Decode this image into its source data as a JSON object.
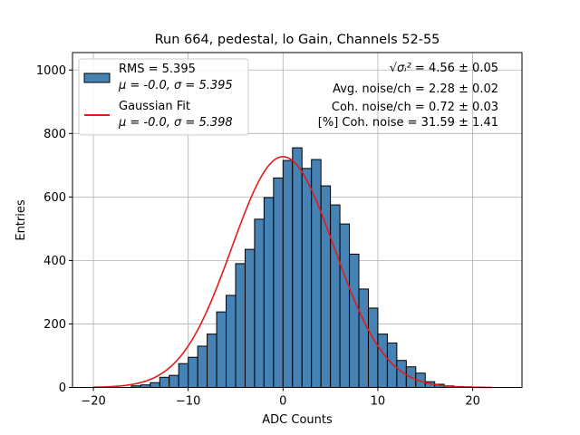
{
  "chart_data": {
    "type": "bar",
    "title": "Run 664, pedestal, lo Gain, Channels 52-55",
    "xlabel": "ADC Counts",
    "ylabel": "Entries",
    "xlim": [
      -22.2,
      25.2
    ],
    "ylim": [
      0,
      1055
    ],
    "grid": true,
    "xticks": [
      -20,
      -10,
      0,
      10,
      20
    ],
    "yticks": [
      0,
      200,
      400,
      600,
      800,
      1000
    ],
    "colors": {
      "bar_fill": "#4682b4",
      "bar_edge": "#000000",
      "fit": "#e31a1c",
      "grid": "#b0b0b0"
    },
    "bin_edges": [
      -20,
      -19,
      -18,
      -17,
      -16,
      -15,
      -14,
      -13,
      -12,
      -11,
      -10,
      -9,
      -8,
      -7,
      -6,
      -5,
      -4,
      -3,
      -2,
      -1,
      0,
      1,
      2,
      3,
      4,
      5,
      6,
      7,
      8,
      9,
      10,
      11,
      12,
      13,
      14,
      15,
      16,
      17,
      18,
      19,
      20,
      21,
      22,
      23
    ],
    "counts": [
      0,
      0,
      0,
      0,
      5,
      8,
      15,
      32,
      38,
      75,
      95,
      130,
      168,
      238,
      290,
      390,
      435,
      530,
      598,
      660,
      715,
      755,
      690,
      718,
      635,
      575,
      515,
      420,
      310,
      250,
      168,
      140,
      85,
      65,
      45,
      18,
      10,
      5,
      3,
      2,
      1,
      0,
      0
    ],
    "series": [
      {
        "name": "RMS = 5.395",
        "stats": "μ = -0.0, σ = 5.395",
        "kind": "histogram"
      },
      {
        "name": "Gaussian Fit",
        "stats": "μ = -0.0, σ = 5.398",
        "kind": "line",
        "mu": 0.0,
        "sigma": 5.398,
        "amplitude": 727,
        "x_range": [
          -20,
          22
        ]
      }
    ],
    "annotations": [
      {
        "label": "√σᵢ²",
        "value": "= 4.56 ± 0.05"
      },
      {
        "label": "Avg. noise/ch",
        "value": "= 2.28 ± 0.02"
      },
      {
        "label": "Coh. noise/ch",
        "value": "= 0.72 ± 0.03"
      },
      {
        "label": "[%] Coh. noise",
        "value": "= 31.59 ± 1.41"
      }
    ],
    "legend_position": "top-left",
    "annotation_position": "top-right"
  }
}
